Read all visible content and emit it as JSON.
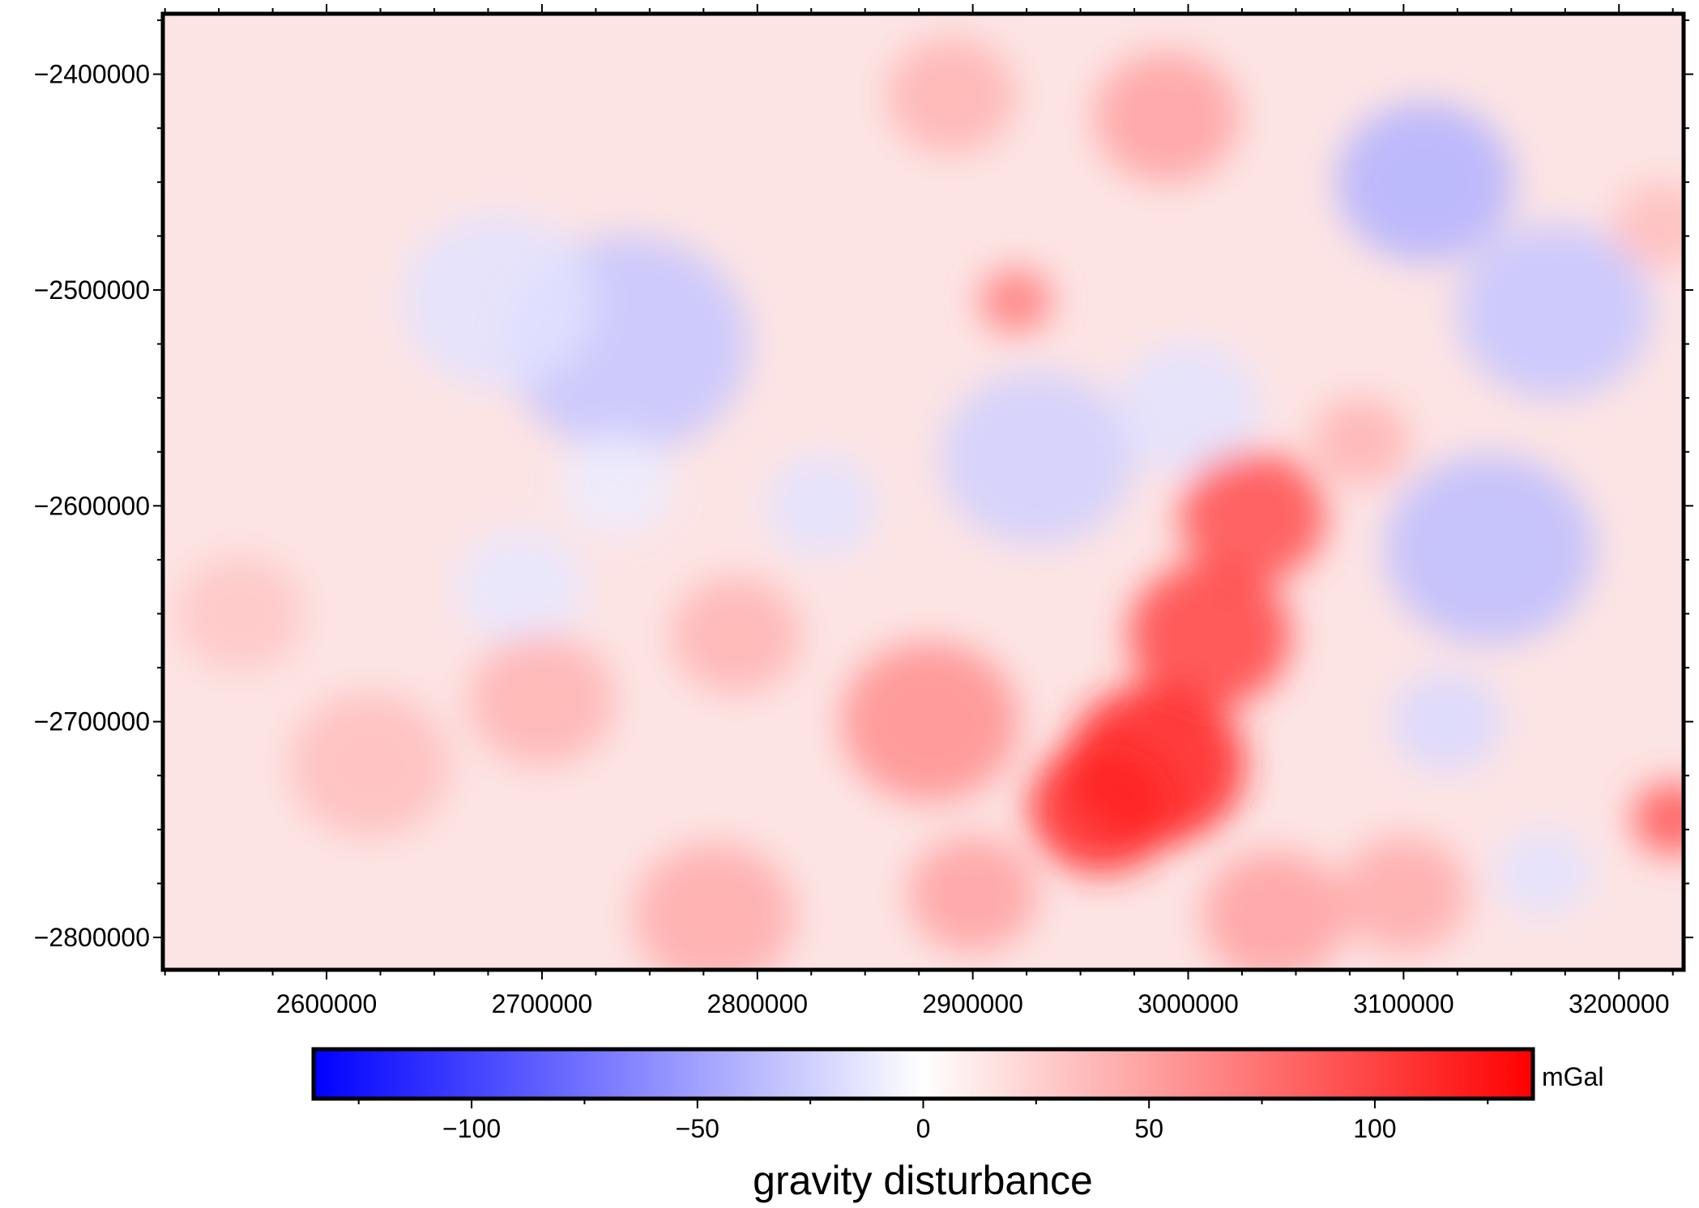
{
  "chart_data": {
    "type": "heatmap",
    "x_ticks": [
      {
        "value": 2600000,
        "label": "2600000"
      },
      {
        "value": 2700000,
        "label": "2700000"
      },
      {
        "value": 2800000,
        "label": "2800000"
      },
      {
        "value": 2900000,
        "label": "2900000"
      },
      {
        "value": 3000000,
        "label": "3000000"
      },
      {
        "value": 3100000,
        "label": "3100000"
      },
      {
        "value": 3200000,
        "label": "3200000"
      }
    ],
    "y_ticks": [
      {
        "value": -2400000,
        "label": "−2400000"
      },
      {
        "value": -2500000,
        "label": "−2500000"
      },
      {
        "value": -2600000,
        "label": "−2600000"
      },
      {
        "value": -2700000,
        "label": "−2700000"
      },
      {
        "value": -2800000,
        "label": "−2800000"
      }
    ],
    "xlim": [
      2524000,
      3230000
    ],
    "ylim": [
      -2815000,
      -2372000
    ],
    "colorbar": {
      "title": "gravity disturbance",
      "unit": "mGal",
      "range": [
        -135,
        135
      ],
      "ticks": [
        {
          "value": -100,
          "label": "−100"
        },
        {
          "value": -50,
          "label": "−50"
        },
        {
          "value": 0,
          "label": "0"
        },
        {
          "value": 50,
          "label": "50"
        },
        {
          "value": 100,
          "label": "100"
        }
      ],
      "colors": {
        "low": "#0000ff",
        "mid": "#ffffff",
        "high": "#ff0000"
      }
    },
    "field_features": [
      {
        "x": 2740000,
        "y": -2525000,
        "value": -30
      },
      {
        "x": 2680000,
        "y": -2505000,
        "value": -15
      },
      {
        "x": 2735000,
        "y": -2590000,
        "value": -10
      },
      {
        "x": 2690000,
        "y": -2638000,
        "value": -12
      },
      {
        "x": 2830000,
        "y": -2600000,
        "value": -15
      },
      {
        "x": 2930000,
        "y": -2578000,
        "value": -25
      },
      {
        "x": 3000000,
        "y": -2555000,
        "value": -15
      },
      {
        "x": 3110000,
        "y": -2450000,
        "value": -40
      },
      {
        "x": 3170000,
        "y": -2510000,
        "value": -30
      },
      {
        "x": 3140000,
        "y": -2620000,
        "value": -35
      },
      {
        "x": 3120000,
        "y": -2700000,
        "value": -20
      },
      {
        "x": 3165000,
        "y": -2770000,
        "value": -15
      },
      {
        "x": 2920000,
        "y": -2505000,
        "value": 70
      },
      {
        "x": 3030000,
        "y": -2605000,
        "value": 95
      },
      {
        "x": 3010000,
        "y": -2660000,
        "value": 100
      },
      {
        "x": 2985000,
        "y": -2720000,
        "value": 120
      },
      {
        "x": 2960000,
        "y": -2740000,
        "value": 115
      },
      {
        "x": 2880000,
        "y": -2700000,
        "value": 60
      },
      {
        "x": 2900000,
        "y": -2780000,
        "value": 50
      },
      {
        "x": 3040000,
        "y": -2790000,
        "value": 50
      },
      {
        "x": 2990000,
        "y": -2420000,
        "value": 50
      },
      {
        "x": 2890000,
        "y": -2410000,
        "value": 40
      },
      {
        "x": 2620000,
        "y": -2720000,
        "value": 35
      },
      {
        "x": 2560000,
        "y": -2650000,
        "value": 30
      },
      {
        "x": 2700000,
        "y": -2690000,
        "value": 40
      },
      {
        "x": 2780000,
        "y": -2790000,
        "value": 45
      },
      {
        "x": 3225000,
        "y": -2745000,
        "value": 90
      },
      {
        "x": 3220000,
        "y": -2470000,
        "value": 35
      },
      {
        "x": 3100000,
        "y": -2780000,
        "value": 45
      },
      {
        "x": 2790000,
        "y": -2660000,
        "value": 40
      },
      {
        "x": 3080000,
        "y": -2570000,
        "value": 40
      }
    ]
  }
}
